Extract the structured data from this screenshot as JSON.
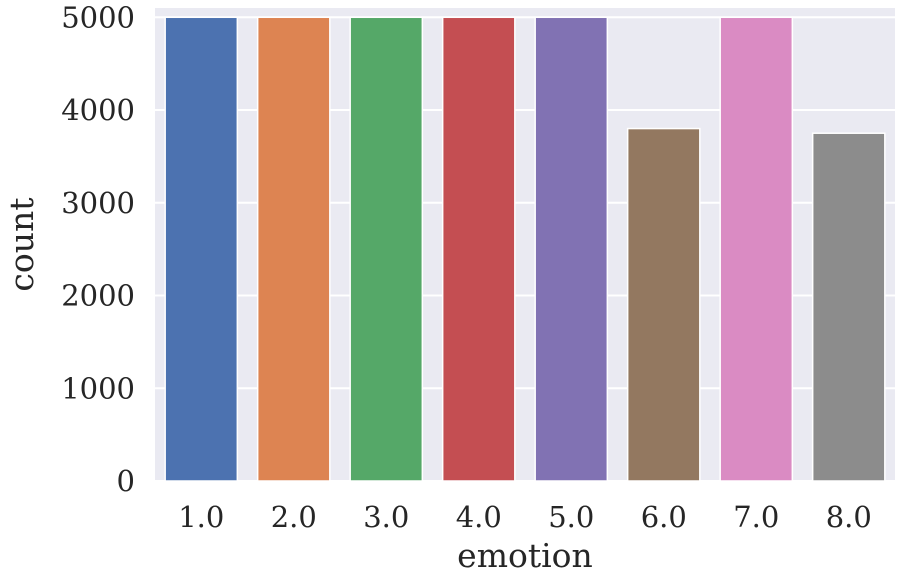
{
  "chart_data": {
    "type": "bar",
    "categories": [
      "1.0",
      "2.0",
      "3.0",
      "4.0",
      "5.0",
      "6.0",
      "7.0",
      "8.0"
    ],
    "values": [
      5000,
      5000,
      5000,
      5000,
      5000,
      3800,
      5000,
      3750
    ],
    "colors": [
      "#4c72b0",
      "#dd8452",
      "#55a868",
      "#c44e52",
      "#8172b3",
      "#937860",
      "#da8bc3",
      "#8c8c8c"
    ],
    "xlabel": "emotion",
    "ylabel": "count",
    "ylim": [
      0,
      5100
    ],
    "yticks": [
      0,
      1000,
      2000,
      3000,
      4000,
      5000
    ],
    "ytick_labels": [
      "0",
      "1000",
      "2000",
      "3000",
      "4000",
      "5000"
    ],
    "grid": true,
    "background": "#eaeaf2",
    "grid_color": "#ffffff"
  }
}
